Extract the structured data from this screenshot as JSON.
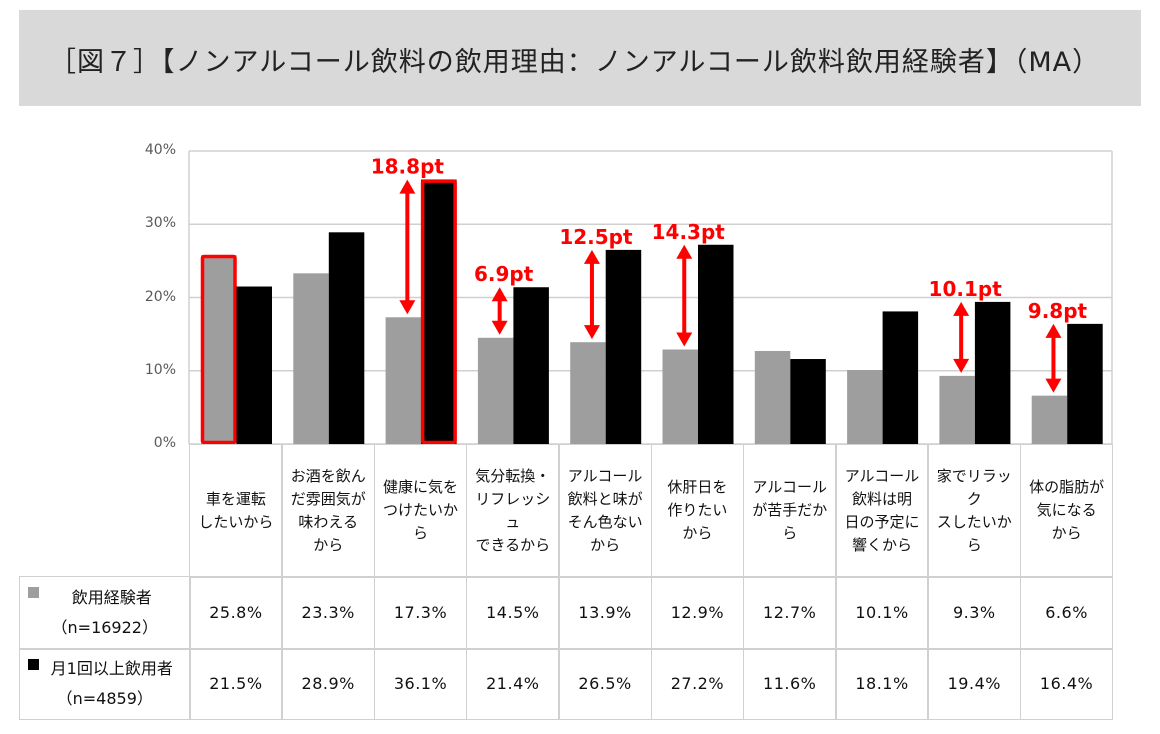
{
  "title": "［図７］【ノンアルコール飲料の飲用理由：ノンアルコール飲料飲用経験者】（MA）",
  "chart_data": {
    "type": "bar",
    "ylim": [
      0,
      40
    ],
    "yticks": [
      "0%",
      "10%",
      "20%",
      "30%",
      "40%"
    ],
    "grid": true,
    "categories": [
      [
        "車を運転",
        "したいから"
      ],
      [
        "お酒を飲ん",
        "だ雰囲気が",
        "味わえる",
        "から"
      ],
      [
        "健康に気を",
        "つけたいか",
        "ら"
      ],
      [
        "気分転換・",
        "リフレッシュ",
        "できるから"
      ],
      [
        "アルコール",
        "飲料と味が",
        "そん色ない",
        "から"
      ],
      [
        "休肝日を",
        "作りたい",
        "から"
      ],
      [
        "アルコール",
        "が苦手だか",
        "ら"
      ],
      [
        "アルコール",
        "飲料は明",
        "日の予定に",
        "響くから"
      ],
      [
        "家でリラック",
        "スしたいから"
      ],
      [
        "体の脂肪が",
        "気になる",
        "から"
      ]
    ],
    "series": [
      {
        "name": "飲用経験者",
        "n": "（n=16922）",
        "color": "#9e9e9e",
        "values": [
          25.8,
          23.3,
          17.3,
          14.5,
          13.9,
          12.9,
          12.7,
          10.1,
          9.3,
          6.6
        ],
        "labels": [
          "25.8%",
          "23.3%",
          "17.3%",
          "14.5%",
          "13.9%",
          "12.9%",
          "12.7%",
          "10.1%",
          "9.3%",
          "6.6%"
        ]
      },
      {
        "name": "月1回以上飲用者",
        "n": "（n=4859）",
        "color": "#000000",
        "values": [
          21.5,
          28.9,
          36.1,
          21.4,
          26.5,
          27.2,
          11.6,
          18.1,
          19.4,
          16.4
        ],
        "labels": [
          "21.5%",
          "28.9%",
          "36.1%",
          "21.4%",
          "26.5%",
          "27.2%",
          "11.6%",
          "18.1%",
          "19.4%",
          "16.4%"
        ]
      }
    ],
    "highlighted_bars": [
      {
        "category": 0,
        "series": 0
      },
      {
        "category": 2,
        "series": 1
      }
    ],
    "highlight_color": "#ff0000",
    "annotations": [
      {
        "category": 2,
        "text": "18.8pt"
      },
      {
        "category": 3,
        "text": "6.9pt"
      },
      {
        "category": 4,
        "text": "12.5pt"
      },
      {
        "category": 5,
        "text": "14.3pt"
      },
      {
        "category": 8,
        "text": "10.1pt"
      },
      {
        "category": 9,
        "text": "9.8pt"
      }
    ]
  }
}
